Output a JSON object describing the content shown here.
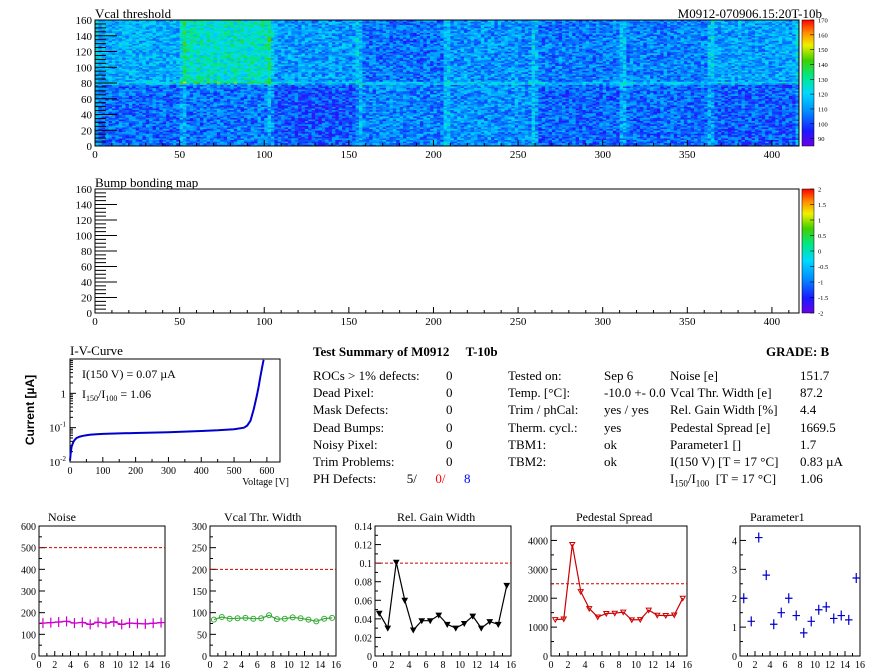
{
  "header": {
    "map1_title": "Vcal threshold",
    "module_id": "M0912-070906.15:20T-10b",
    "map2_title": "Bump bonding map"
  },
  "chart_data": [
    {
      "type": "heatmap",
      "name": "Vcal threshold",
      "xlim": [
        0,
        416
      ],
      "ylim": [
        0,
        160
      ],
      "x_ticks": [
        "0",
        "50",
        "100",
        "150",
        "200",
        "250",
        "300",
        "350",
        "400"
      ],
      "y_ticks": [
        "0",
        "20",
        "40",
        "60",
        "80",
        "100",
        "120",
        "140",
        "160"
      ],
      "color_scale": {
        "min": 85,
        "max": 170,
        "ticks": [
          "90",
          "100",
          "110",
          "120",
          "130",
          "140",
          "150",
          "160",
          "170"
        ]
      },
      "roc_mean_top": [
        103,
        107,
        99,
        91,
        103,
        107,
        103,
        110,
        112,
        108,
        107,
        110,
        106,
        111,
        126,
        114
      ],
      "roc_mean_bottom": [
        105,
        106,
        102,
        108,
        110,
        104,
        105,
        103,
        100,
        107,
        102,
        107,
        103,
        100,
        102,
        108
      ]
    },
    {
      "type": "heatmap",
      "name": "Bump bonding map",
      "xlim": [
        0,
        416
      ],
      "ylim": [
        0,
        160
      ],
      "x_ticks": [
        "0",
        "50",
        "100",
        "150",
        "200",
        "250",
        "300",
        "350",
        "400"
      ],
      "y_ticks": [
        "0",
        "20",
        "40",
        "60",
        "80",
        "100",
        "120",
        "140",
        "160"
      ],
      "color_scale": {
        "min": -2,
        "max": 2,
        "ticks": [
          "2",
          "1.5",
          "1",
          "0.5",
          "0",
          "-0.5",
          "-1",
          "-1.5",
          "-2"
        ]
      },
      "values": []
    },
    {
      "type": "line",
      "title": "I-V-Curve",
      "xlabel": "Voltage [V]",
      "ylabel": "Current [µA]",
      "xlim": [
        0,
        640
      ],
      "ylim": [
        0.01,
        10
      ],
      "yscale": "log",
      "x_ticks": [
        "0",
        "100",
        "200",
        "300",
        "400",
        "500",
        "600"
      ],
      "y_ticks": [
        {
          "value": 0.01,
          "mantissa": "10",
          "exp": "-2"
        },
        {
          "value": 0.1,
          "mantissa": "10",
          "exp": "-1"
        },
        {
          "value": 1,
          "mantissa": "1",
          "exp": ""
        }
      ],
      "x": [
        0,
        2,
        5,
        10,
        15,
        20,
        30,
        40,
        50,
        60,
        80,
        100,
        150,
        200,
        250,
        300,
        350,
        400,
        450,
        500,
        530,
        540,
        550,
        560,
        570,
        575,
        580,
        585,
        590
      ],
      "y": [
        0.011,
        0.018,
        0.028,
        0.038,
        0.045,
        0.05,
        0.055,
        0.058,
        0.06,
        0.062,
        0.064,
        0.066,
        0.068,
        0.07,
        0.072,
        0.074,
        0.077,
        0.08,
        0.084,
        0.09,
        0.1,
        0.115,
        0.16,
        0.35,
        0.9,
        1.6,
        3.0,
        5.5,
        9.5
      ],
      "annotations": {
        "i150_label": "I(150 V) = 0.07 µA",
        "ratio_prefix": "I",
        "ratio_sub1": "150",
        "ratio_mid": "/I",
        "ratio_sub2": "100",
        "ratio_value": " =  1.06"
      }
    },
    {
      "type": "line",
      "title": "Noise",
      "xlim": [
        0,
        16
      ],
      "ylim": [
        0,
        600
      ],
      "threshold": 500,
      "color": "#cc00cc",
      "marker": "cross",
      "y_ticks": [
        "0",
        "100",
        "200",
        "300",
        "400",
        "500",
        "600"
      ],
      "x": [
        0,
        1,
        2,
        3,
        4,
        5,
        6,
        7,
        8,
        9,
        10,
        11,
        12,
        13,
        14,
        15
      ],
      "values": [
        152,
        154,
        157,
        160,
        152,
        155,
        146,
        156,
        151,
        158,
        146,
        152,
        150,
        148,
        151,
        154
      ]
    },
    {
      "type": "line",
      "title": "Vcal Thr. Width",
      "xlim": [
        0,
        16
      ],
      "ylim": [
        0,
        300
      ],
      "threshold": 200,
      "color": "#33aa33",
      "marker": "circle",
      "y_ticks": [
        "0",
        "50",
        "100",
        "150",
        "200",
        "250",
        "300"
      ],
      "x": [
        0,
        1,
        2,
        3,
        4,
        5,
        6,
        7,
        8,
        9,
        10,
        11,
        12,
        13,
        14,
        15
      ],
      "values": [
        84,
        90,
        86,
        87,
        88,
        86,
        87,
        94,
        85,
        86,
        89,
        87,
        84,
        80,
        86,
        88
      ]
    },
    {
      "type": "line",
      "title": "Rel. Gain Width",
      "xlim": [
        0,
        16
      ],
      "ylim": [
        0,
        0.14
      ],
      "threshold": 0.1,
      "color": "#000000",
      "marker": "triangle",
      "y_ticks": [
        "0",
        "0.02",
        "0.04",
        "0.06",
        "0.08",
        "0.1",
        "0.12",
        "0.14"
      ],
      "x": [
        0,
        1,
        2,
        3,
        4,
        5,
        6,
        7,
        8,
        9,
        10,
        11,
        12,
        13,
        14,
        15
      ],
      "values": [
        0.046,
        0.03,
        0.101,
        0.06,
        0.028,
        0.038,
        0.038,
        0.044,
        0.034,
        0.03,
        0.035,
        0.043,
        0.03,
        0.037,
        0.034,
        0.076
      ]
    },
    {
      "type": "line",
      "title": "Pedestal Spread",
      "xlim": [
        0,
        16
      ],
      "ylim": [
        0,
        4500
      ],
      "threshold": 2500,
      "color": "#cc0000",
      "marker": "triangle",
      "y_ticks": [
        "0",
        "1000",
        "2000",
        "3000",
        "4000"
      ],
      "y_tick_values": [
        0,
        1000,
        2000,
        3000,
        4000
      ],
      "x": [
        0,
        1,
        2,
        3,
        4,
        5,
        6,
        7,
        8,
        9,
        10,
        11,
        12,
        13,
        14,
        15
      ],
      "values": [
        1260,
        1280,
        3860,
        2230,
        1640,
        1350,
        1470,
        1480,
        1520,
        1250,
        1260,
        1590,
        1410,
        1400,
        1420,
        2000
      ]
    },
    {
      "type": "scatter",
      "title": "Parameter1",
      "xlim": [
        0,
        16
      ],
      "ylim": [
        0,
        4.5
      ],
      "color": "#0000cc",
      "marker": "cross",
      "y_ticks": [
        "0",
        "1",
        "2",
        "3",
        "4"
      ],
      "y_tick_values": [
        0,
        1,
        2,
        3,
        4
      ],
      "x": [
        0,
        1,
        2,
        3,
        4,
        5,
        6,
        7,
        8,
        9,
        10,
        11,
        12,
        13,
        14,
        15
      ],
      "values": [
        2.0,
        1.2,
        4.1,
        2.8,
        1.1,
        1.5,
        2.0,
        1.4,
        0.8,
        1.2,
        1.6,
        1.7,
        1.3,
        1.4,
        1.25,
        2.7
      ]
    }
  ],
  "shared_x_ticks": [
    "0",
    "2",
    "4",
    "6",
    "8",
    "10",
    "12",
    "14",
    "16"
  ],
  "summary": {
    "title_prefix": "Test Summary of M0912",
    "title_suffix": "T-10b",
    "grade": "GRADE:  B",
    "defects": [
      {
        "label": "ROCs > 1% defects:",
        "value": "0"
      },
      {
        "label": "Dead Pixel:",
        "value": "0"
      },
      {
        "label": "Mask Defects:",
        "value": "0"
      },
      {
        "label": "Dead Bumps:",
        "value": "0"
      },
      {
        "label": "Noisy Pixel:",
        "value": "0"
      },
      {
        "label": "Trim Problems:",
        "value": "0"
      }
    ],
    "ph_label": "PH Defects:",
    "ph_values": [
      {
        "text": "5/",
        "color": "#000000"
      },
      {
        "text": "0/",
        "color": "#ff0000"
      },
      {
        "text": "8",
        "color": "#0000ff"
      }
    ],
    "conditions": [
      {
        "label": "Tested on:",
        "value": "Sep 6"
      },
      {
        "label": "Temp. [°C]:",
        "value": "-10.0 +- 0.0"
      },
      {
        "label": "Trim / phCal:",
        "value": "yes / yes"
      },
      {
        "label": "Therm. cycl.:",
        "value": "yes"
      },
      {
        "label": "TBM1:",
        "value": "ok"
      },
      {
        "label": "TBM2:",
        "value": "ok"
      }
    ],
    "results": [
      {
        "label": "Noise [e]",
        "value": "151.7"
      },
      {
        "label": "Vcal Thr. Width [e]",
        "value": "87.2"
      },
      {
        "label": "Rel. Gain Width [%]",
        "value": "4.4"
      },
      {
        "label": "Pedestal Spread [e]",
        "value": "1669.5"
      },
      {
        "label": "Parameter1 []",
        "value": "1.7"
      },
      {
        "label": "I(150 V) [T = 17 °C]",
        "value": "0.83 µA"
      }
    ],
    "ratio_row": {
      "prefix": "I",
      "sub1": "150",
      "mid": "/I",
      "sub2": "100",
      "suffix": "  [T = 17 °C]",
      "value": "1.06"
    }
  }
}
